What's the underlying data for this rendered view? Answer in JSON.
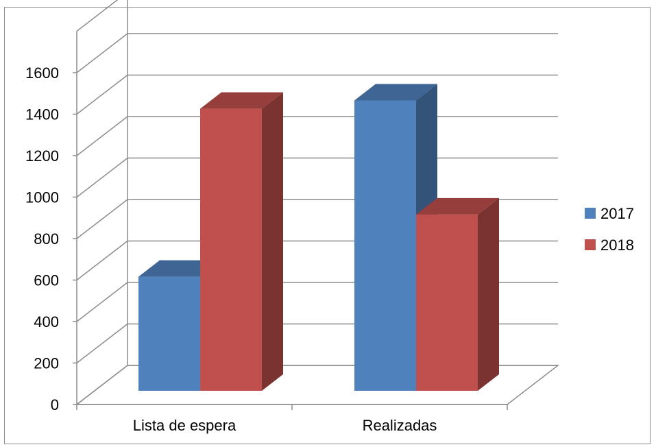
{
  "chart_data": {
    "type": "bar",
    "categories": [
      "Lista de espera",
      "Realizadas"
    ],
    "series": [
      {
        "name": "2017",
        "values": [
          550,
          1400
        ],
        "color": "#4f81bd"
      },
      {
        "name": "2018",
        "values": [
          1360,
          850
        ],
        "color": "#c0504d"
      }
    ],
    "ylim": [
      0,
      1600
    ],
    "yticks": [
      "0",
      "200",
      "400",
      "600",
      "800",
      "1000",
      "1200",
      "1400",
      "1600"
    ],
    "legend_position": "right",
    "grid": true,
    "style": "3d-clustered-column"
  }
}
